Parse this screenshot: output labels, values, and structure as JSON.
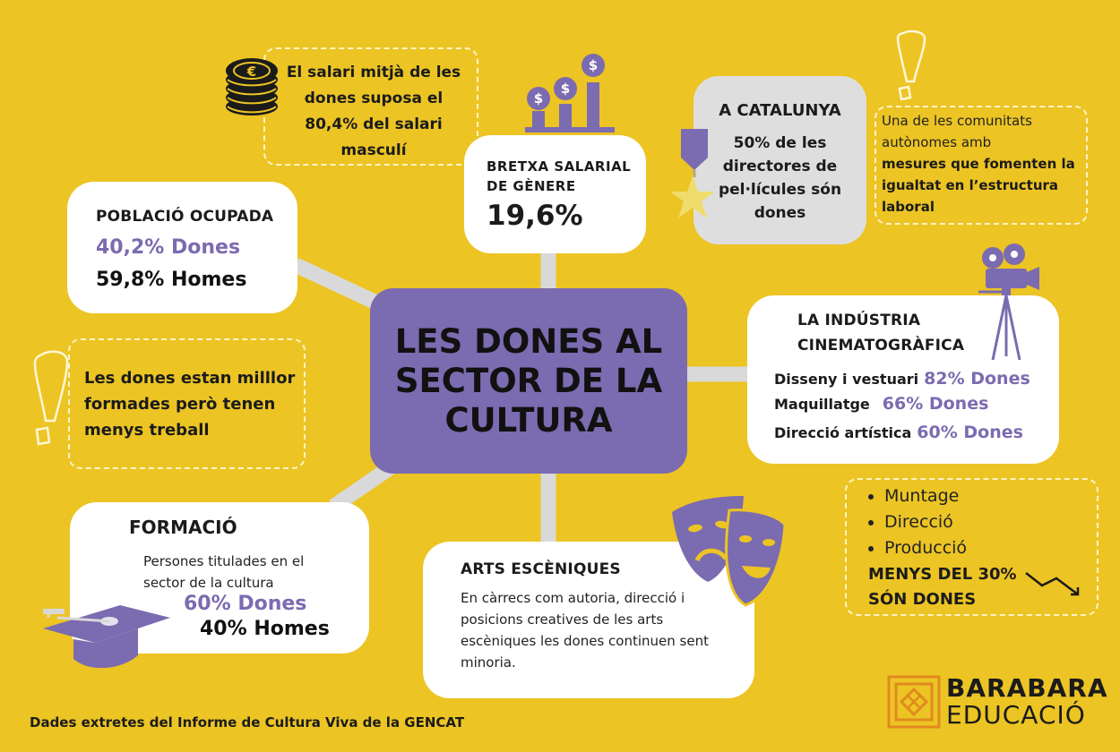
{
  "center": {
    "title": "LES DONES AL SECTOR DE LA CULTURA"
  },
  "poblacio": {
    "title": "POBLACIÓ OCUPADA",
    "women": "40,2% Dones",
    "men": "59,8% Homes"
  },
  "salari": {
    "text": "El salari mitjà de les dones suposa el 80,4% del salari masculí"
  },
  "bretxa": {
    "title": "BRETXA SALARIAL DE GÈNERE",
    "value": "19,6%"
  },
  "catalunya": {
    "title": "A CATALUNYA",
    "text": "50% de les directores de pel·lícules són dones"
  },
  "comunitats": {
    "intro": "Una de les comunitats autònomes amb",
    "highlight": "mesures que fomenten la igualtat en l’estructura laboral"
  },
  "formades": {
    "text": "Les dones estan milllor formades però tenen menys treball"
  },
  "cinema": {
    "title": "LA INDÚSTRIA CINEMATOGRÀFICA",
    "rows": [
      {
        "label": "Disseny i vestuari",
        "value": "82% Dones"
      },
      {
        "label": "Maquillatge",
        "value": "66% Dones"
      },
      {
        "label": "Direcció artística",
        "value": "60% Dones"
      }
    ]
  },
  "produccio": {
    "items": [
      "Muntage",
      "Direcció",
      "Producció"
    ],
    "conclusion": "MENYS DEL 30% SÓN DONES"
  },
  "formacio": {
    "title": "FORMACIÓ",
    "text": "Persones titulades en el sector de la cultura",
    "women": "60% Dones",
    "men": "40% Homes"
  },
  "arts": {
    "title": "ARTS ESCÈNIQUES",
    "text": "En càrrecs com autoria, direcció i posicions creatives de les arts escèniques les dones continuen sent minoria."
  },
  "footer": {
    "source": "Dades extretes del Informe de Cultura Viva de la GENCAT"
  },
  "logo": {
    "line1": "BARABARA",
    "line2": "EDUCACIÓ"
  },
  "colors": {
    "background": "#ecc424",
    "accent": "#7b6bb0",
    "card": "#ffffff",
    "catalunya_card": "#dedede",
    "connector": "#d9d9d9",
    "logo": "#e08a1e"
  },
  "icons": [
    "coins-icon",
    "money-growth-chart-icon",
    "medal-icon",
    "exclamation-icon",
    "film-camera-icon",
    "theater-masks-icon",
    "graduation-cap-icon",
    "trend-down-arrow-icon",
    "barabara-logo-icon"
  ]
}
